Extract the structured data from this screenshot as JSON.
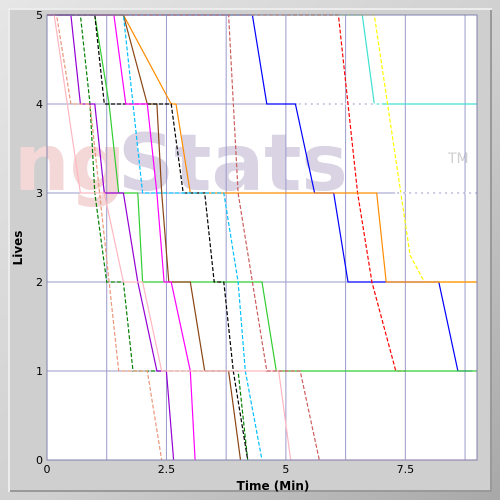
{
  "chart_data": {
    "type": "line",
    "watermark": {
      "prefix": "ng",
      "suffix": "Stats",
      "mark": "TM"
    },
    "xlabel": "Time (Min)",
    "ylabel": "Lives",
    "xlim": [
      0,
      9
    ],
    "ylim": [
      0,
      5
    ],
    "x_ticks": [
      0,
      2.5,
      5,
      7.5
    ],
    "x_tick_labels": [
      "0",
      "2.5",
      "5",
      "7.5"
    ],
    "y_ticks": [
      0,
      1,
      2,
      3,
      4,
      5
    ],
    "y_tick_labels": [
      "0",
      "1",
      "2",
      "3",
      "4",
      "5"
    ],
    "x_grid_step": 1.25,
    "grid": true,
    "colors": {
      "background": "#ffffff",
      "grid": "#9a9acb",
      "frame": "#cfcfcf"
    },
    "series": [
      {
        "color": "#0000ff",
        "dashed": false,
        "points": [
          [
            0,
            5
          ],
          [
            4.3,
            5
          ],
          [
            4.6,
            4
          ],
          [
            5.2,
            4
          ],
          [
            5.6,
            3
          ],
          [
            6.0,
            3
          ],
          [
            6.3,
            2
          ],
          [
            6.9,
            2
          ],
          [
            7.3,
            2
          ],
          [
            8.2,
            2
          ],
          [
            8.6,
            1
          ],
          [
            8.9,
            1
          ]
        ]
      },
      {
        "color": "#40e0d0",
        "dashed": false,
        "points": [
          [
            0,
            5
          ],
          [
            6.6,
            5
          ],
          [
            6.85,
            4
          ],
          [
            9.0,
            4
          ]
        ]
      },
      {
        "color": "#ffff00",
        "dashed": true,
        "points": [
          [
            0,
            5
          ],
          [
            6.85,
            5
          ],
          [
            7.6,
            2.3
          ],
          [
            7.9,
            2
          ],
          [
            9.0,
            2
          ]
        ]
      },
      {
        "color": "#ffffff",
        "dashed": true,
        "points": [
          [
            0,
            5
          ],
          [
            5.1,
            5
          ],
          [
            5.25,
            4
          ],
          [
            7.0,
            4
          ],
          [
            7.3,
            3
          ],
          [
            9.0,
            3
          ]
        ]
      },
      {
        "color": "#ff0000",
        "dashed": true,
        "points": [
          [
            0,
            5
          ],
          [
            6.1,
            5
          ],
          [
            6.3,
            4
          ],
          [
            6.5,
            3
          ],
          [
            6.8,
            2
          ],
          [
            7.3,
            1
          ],
          [
            7.5,
            1
          ]
        ]
      },
      {
        "color": "#ff8c00",
        "dashed": false,
        "points": [
          [
            0,
            5
          ],
          [
            1.6,
            5
          ],
          [
            2.6,
            4
          ],
          [
            2.7,
            4
          ],
          [
            3.0,
            3
          ],
          [
            6.9,
            3
          ],
          [
            7.1,
            2
          ],
          [
            9.0,
            2
          ]
        ]
      },
      {
        "color": "#32cd32",
        "dashed": false,
        "points": [
          [
            0,
            5
          ],
          [
            1.0,
            5
          ],
          [
            1.3,
            4
          ],
          [
            1.5,
            3
          ],
          [
            1.9,
            3
          ],
          [
            2.0,
            2
          ],
          [
            4.5,
            2
          ],
          [
            4.8,
            1
          ],
          [
            9.0,
            1
          ]
        ]
      },
      {
        "color": "#008000",
        "dashed": true,
        "points": [
          [
            0,
            5
          ],
          [
            0.7,
            5
          ],
          [
            0.9,
            4
          ],
          [
            1.0,
            3
          ],
          [
            1.25,
            2
          ],
          [
            1.6,
            2
          ],
          [
            1.8,
            1
          ],
          [
            4.0,
            1
          ],
          [
            4.2,
            0
          ]
        ]
      },
      {
        "color": "#8b4513",
        "dashed": false,
        "points": [
          [
            0,
            5
          ],
          [
            1.6,
            5
          ],
          [
            2.1,
            4
          ],
          [
            2.3,
            4
          ],
          [
            2.4,
            3
          ],
          [
            2.55,
            2
          ],
          [
            3.0,
            2
          ],
          [
            3.3,
            1
          ],
          [
            3.8,
            1
          ],
          [
            4.05,
            0
          ]
        ]
      },
      {
        "color": "#000000",
        "dashed": true,
        "points": [
          [
            0,
            5
          ],
          [
            1.0,
            5
          ],
          [
            1.2,
            4
          ],
          [
            2.6,
            4
          ],
          [
            2.85,
            3
          ],
          [
            3.3,
            3
          ],
          [
            3.5,
            2
          ],
          [
            3.7,
            2
          ],
          [
            3.9,
            1
          ],
          [
            4.2,
            0
          ]
        ]
      },
      {
        "color": "#ff00ff",
        "dashed": false,
        "points": [
          [
            0,
            5
          ],
          [
            1.4,
            5
          ],
          [
            1.65,
            4
          ],
          [
            2.1,
            4
          ],
          [
            2.3,
            3
          ],
          [
            2.45,
            2
          ],
          [
            2.6,
            2
          ],
          [
            3.0,
            1
          ],
          [
            3.1,
            0
          ]
        ]
      },
      {
        "color": "#9400d3",
        "dashed": false,
        "points": [
          [
            0,
            5
          ],
          [
            0.5,
            5
          ],
          [
            0.7,
            4
          ],
          [
            1.0,
            4
          ],
          [
            1.2,
            3
          ],
          [
            1.6,
            3
          ],
          [
            1.9,
            2
          ],
          [
            2.3,
            1
          ],
          [
            2.5,
            1
          ],
          [
            2.65,
            0
          ]
        ]
      },
      {
        "color": "#00bfff",
        "dashed": true,
        "points": [
          [
            0,
            5
          ],
          [
            1.6,
            5
          ],
          [
            1.8,
            4
          ],
          [
            2.0,
            3
          ],
          [
            3.7,
            3
          ],
          [
            4.0,
            2
          ],
          [
            4.15,
            1
          ],
          [
            4.5,
            0
          ]
        ]
      },
      {
        "color": "#ffb6c1",
        "dashed": false,
        "points": [
          [
            0,
            5
          ],
          [
            0.15,
            5
          ],
          [
            0.7,
            3
          ],
          [
            1.2,
            3
          ],
          [
            1.6,
            2
          ],
          [
            2.0,
            2
          ],
          [
            2.4,
            1
          ],
          [
            4.85,
            1
          ],
          [
            5.1,
            0
          ],
          [
            9.0,
            0
          ]
        ]
      },
      {
        "color": "#cd5c5c",
        "dashed": true,
        "points": [
          [
            0,
            5
          ],
          [
            3.8,
            5
          ],
          [
            4.0,
            3
          ],
          [
            4.3,
            2
          ],
          [
            4.6,
            1
          ],
          [
            5.3,
            1
          ],
          [
            5.7,
            0
          ]
        ]
      },
      {
        "color": "#e9967a",
        "dashed": true,
        "points": [
          [
            0,
            5
          ],
          [
            0.2,
            5
          ],
          [
            0.5,
            4
          ],
          [
            0.9,
            4
          ],
          [
            1.1,
            3
          ],
          [
            1.5,
            1
          ],
          [
            2.1,
            1
          ],
          [
            2.4,
            0
          ]
        ]
      }
    ]
  }
}
